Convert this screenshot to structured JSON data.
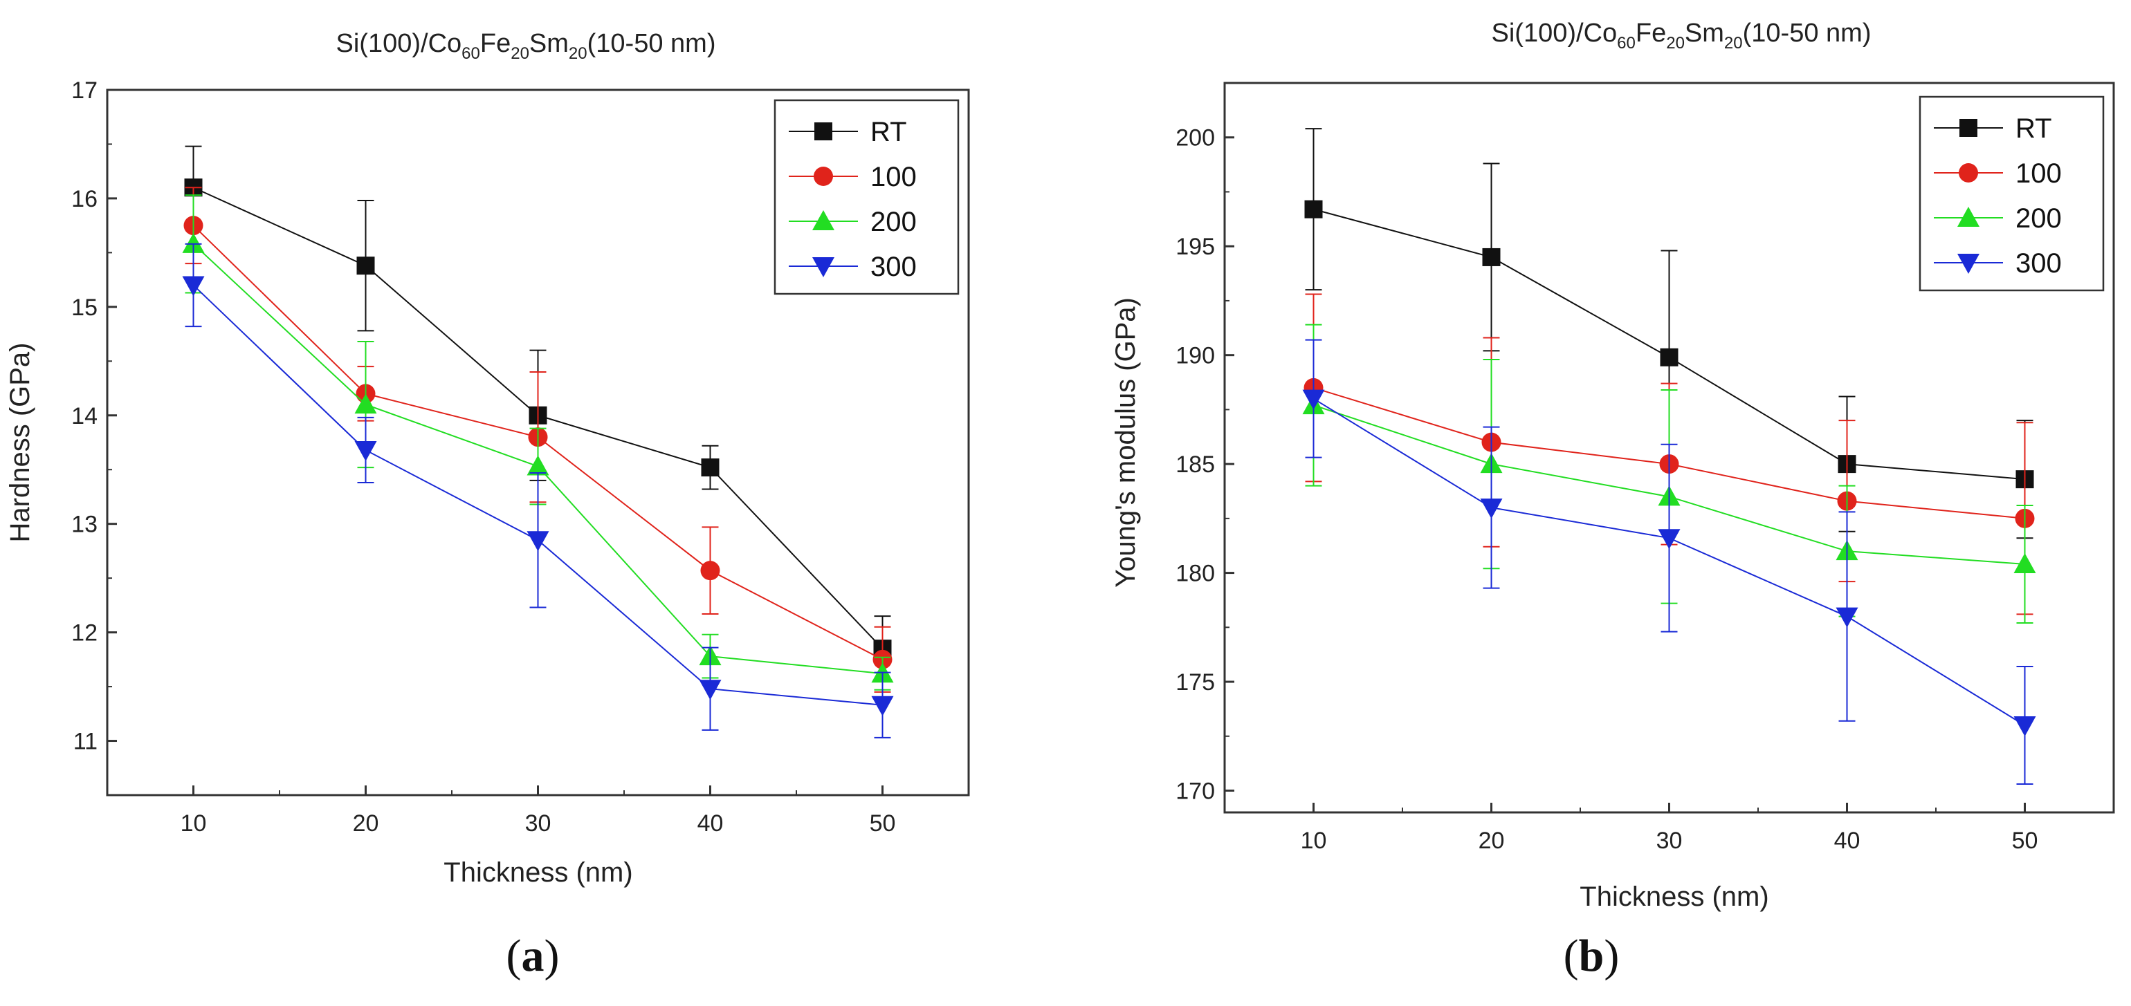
{
  "chart_data": [
    {
      "type": "line",
      "panel": "a",
      "caption_letter": "a",
      "title": {
        "prefix": "Si(100)/Co",
        "sub1": "60",
        "mid1": "Fe",
        "sub2": "20",
        "mid2": "Sm",
        "sub3": "20",
        "suffix": "(10-50 nm)"
      },
      "xlabel": "Thickness (nm)",
      "ylabel": "Hardness (GPa)",
      "x": [
        10,
        20,
        30,
        40,
        50
      ],
      "xlim": [
        5,
        55
      ],
      "ylim": [
        10.5,
        17
      ],
      "xticks": [
        10,
        20,
        30,
        40,
        50
      ],
      "yticks": [
        11,
        12,
        13,
        14,
        15,
        16,
        17
      ],
      "legend_position": "top-right",
      "series": [
        {
          "name": "RT",
          "color": "#111111",
          "marker": "square",
          "values": [
            16.1,
            15.38,
            14.0,
            13.52,
            11.85
          ],
          "errors": [
            0.38,
            0.6,
            0.6,
            0.2,
            0.3
          ]
        },
        {
          "name": "100",
          "color": "#e0231b",
          "marker": "circle",
          "values": [
            15.75,
            14.2,
            13.8,
            12.57,
            11.75
          ],
          "errors": [
            0.35,
            0.25,
            0.6,
            0.4,
            0.3
          ]
        },
        {
          "name": "200",
          "color": "#22dd22",
          "marker": "triangle-up",
          "values": [
            15.58,
            14.1,
            13.53,
            11.78,
            11.62
          ],
          "errors": [
            0.45,
            0.58,
            0.35,
            0.2,
            0.15
          ]
        },
        {
          "name": "300",
          "color": "#1a2ad6",
          "marker": "triangle-down",
          "values": [
            15.2,
            13.68,
            12.85,
            11.48,
            11.33
          ],
          "errors": [
            0.38,
            0.3,
            0.62,
            0.38,
            0.3
          ]
        }
      ]
    },
    {
      "type": "line",
      "panel": "b",
      "caption_letter": "b",
      "title": {
        "prefix": "Si(100)/Co",
        "sub1": "60",
        "mid1": "Fe",
        "sub2": "20",
        "mid2": "Sm",
        "sub3": "20",
        "suffix": "(10-50 nm)"
      },
      "xlabel": "Thickness (nm)",
      "ylabel": "Young's modulus (GPa)",
      "x": [
        10,
        20,
        30,
        40,
        50
      ],
      "xlim": [
        5,
        55
      ],
      "ylim": [
        169,
        202.5
      ],
      "xticks": [
        10,
        20,
        30,
        40,
        50
      ],
      "yticks": [
        170,
        175,
        180,
        185,
        190,
        195,
        200
      ],
      "legend_position": "top-right",
      "series": [
        {
          "name": "RT",
          "color": "#111111",
          "marker": "square",
          "values": [
            196.7,
            194.5,
            189.9,
            185.0,
            184.3
          ],
          "errors": [
            3.7,
            4.3,
            4.9,
            3.1,
            2.7
          ]
        },
        {
          "name": "100",
          "color": "#e0231b",
          "marker": "circle",
          "values": [
            188.5,
            186.0,
            185.0,
            183.3,
            182.5
          ],
          "errors": [
            4.3,
            4.8,
            3.7,
            3.7,
            4.4
          ]
        },
        {
          "name": "200",
          "color": "#22dd22",
          "marker": "triangle-up",
          "values": [
            187.7,
            185.0,
            183.5,
            181.0,
            180.4
          ],
          "errors": [
            3.7,
            4.8,
            4.9,
            3.0,
            2.7
          ]
        },
        {
          "name": "300",
          "color": "#1a2ad6",
          "marker": "triangle-down",
          "values": [
            188.0,
            183.0,
            181.6,
            178.0,
            173.0
          ],
          "errors": [
            2.7,
            3.7,
            4.3,
            4.8,
            2.7
          ]
        }
      ]
    }
  ]
}
